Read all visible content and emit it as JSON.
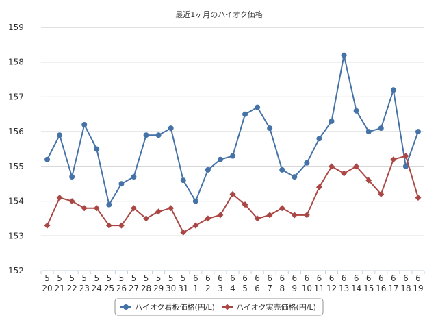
{
  "chart_data": {
    "type": "line",
    "title": "最近1ヶ月のハイオク価格",
    "xlabel": "",
    "ylabel": "",
    "ylim": [
      152,
      159
    ],
    "yticks": [
      152,
      153,
      154,
      155,
      156,
      157,
      158,
      159
    ],
    "grid": true,
    "legend": "bottom",
    "categories": [
      {
        "month": "5",
        "day": "20"
      },
      {
        "month": "5",
        "day": "21"
      },
      {
        "month": "5",
        "day": "22"
      },
      {
        "month": "5",
        "day": "23"
      },
      {
        "month": "5",
        "day": "24"
      },
      {
        "month": "5",
        "day": "25"
      },
      {
        "month": "5",
        "day": "26"
      },
      {
        "month": "5",
        "day": "27"
      },
      {
        "month": "5",
        "day": "28"
      },
      {
        "month": "5",
        "day": "29"
      },
      {
        "month": "5",
        "day": "30"
      },
      {
        "month": "5",
        "day": "31"
      },
      {
        "month": "6",
        "day": "1"
      },
      {
        "month": "6",
        "day": "2"
      },
      {
        "month": "6",
        "day": "3"
      },
      {
        "month": "6",
        "day": "4"
      },
      {
        "month": "6",
        "day": "5"
      },
      {
        "month": "6",
        "day": "6"
      },
      {
        "month": "6",
        "day": "7"
      },
      {
        "month": "6",
        "day": "8"
      },
      {
        "month": "6",
        "day": "9"
      },
      {
        "month": "6",
        "day": "10"
      },
      {
        "month": "6",
        "day": "11"
      },
      {
        "month": "6",
        "day": "12"
      },
      {
        "month": "6",
        "day": "13"
      },
      {
        "month": "6",
        "day": "14"
      },
      {
        "month": "6",
        "day": "15"
      },
      {
        "month": "6",
        "day": "16"
      },
      {
        "month": "6",
        "day": "17"
      },
      {
        "month": "6",
        "day": "18"
      },
      {
        "month": "6",
        "day": "19"
      }
    ],
    "series": [
      {
        "name": "ハイオク看板価格(円/L)",
        "color": "#4572a7",
        "marker": "circle",
        "values": [
          155.2,
          155.9,
          154.7,
          156.2,
          155.5,
          153.9,
          154.5,
          154.7,
          155.9,
          155.9,
          156.1,
          154.6,
          154.0,
          154.9,
          155.2,
          155.3,
          156.5,
          156.7,
          156.1,
          154.9,
          154.7,
          155.1,
          155.8,
          156.3,
          158.2,
          156.6,
          156.0,
          156.1,
          157.2,
          155.0,
          156.0
        ]
      },
      {
        "name": "ハイオク実売価格(円/L)",
        "color": "#aa4643",
        "marker": "diamond",
        "values": [
          153.3,
          154.1,
          154.0,
          153.8,
          153.8,
          153.3,
          153.3,
          153.8,
          153.5,
          153.7,
          153.8,
          153.1,
          153.3,
          153.5,
          153.6,
          154.2,
          153.9,
          153.5,
          153.6,
          153.8,
          153.6,
          153.6,
          154.4,
          155.0,
          154.8,
          155.0,
          154.6,
          154.2,
          155.2,
          155.3,
          154.1
        ]
      }
    ]
  }
}
